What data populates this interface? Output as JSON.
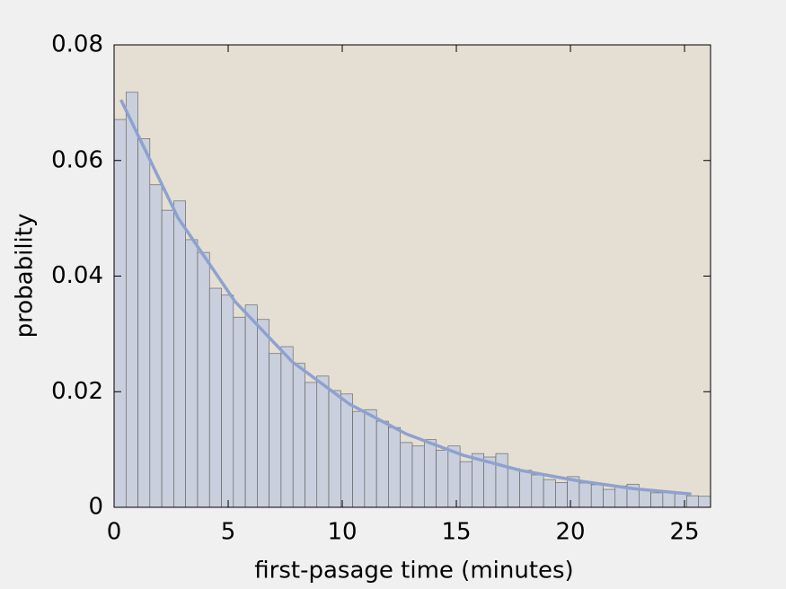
{
  "chart_data": {
    "type": "histogram",
    "x_label": "first-pasage time (minutes)",
    "y_label": "probability",
    "bins": [
      0,
      0.523,
      1.046,
      1.568,
      2.091,
      2.614,
      3.137,
      3.66,
      4.182,
      4.705,
      5.228,
      5.751,
      6.274,
      6.796,
      7.319,
      7.842,
      8.365,
      8.888,
      9.41,
      9.933,
      10.456,
      10.979,
      11.502,
      12.024,
      12.547,
      13.07,
      13.593,
      14.116,
      14.638,
      15.161,
      15.684,
      16.207,
      16.73,
      17.252,
      17.775,
      18.298,
      18.821,
      19.344,
      19.866,
      20.389,
      20.912,
      21.435,
      21.958,
      22.48,
      23.003,
      23.526,
      24.049,
      24.572,
      25.094,
      25.617,
      26.14
    ],
    "values": [
      0.0671,
      0.0718,
      0.0638,
      0.0558,
      0.0514,
      0.053,
      0.0463,
      0.0441,
      0.0379,
      0.0367,
      0.0329,
      0.035,
      0.0325,
      0.0266,
      0.0278,
      0.0249,
      0.0216,
      0.0227,
      0.0202,
      0.0196,
      0.0166,
      0.0169,
      0.0149,
      0.0138,
      0.0112,
      0.0106,
      0.0117,
      0.0099,
      0.0106,
      0.0079,
      0.0093,
      0.0087,
      0.0093,
      0.0067,
      0.0064,
      0.0056,
      0.0048,
      0.0043,
      0.0053,
      0.0042,
      0.0039,
      0.0031,
      0.0037,
      0.004,
      0.0031,
      0.0025,
      0.0026,
      0.0023,
      0.002,
      0.0019
    ],
    "color": "#c9cfdc",
    "edge_color": "#5a5a5a",
    "curve": {
      "x": [
        0.3,
        2.8,
        5.3,
        7.8,
        10.3,
        12.8,
        15.3,
        17.8,
        20.3,
        22.8,
        25.3
      ],
      "values": [
        0.0705,
        0.0501,
        0.0356,
        0.0252,
        0.0179,
        0.0127,
        0.009,
        0.0064,
        0.0046,
        0.0032,
        0.0023
      ],
      "color": "#8ea2cf"
    },
    "xlim": [
      0,
      26.14
    ],
    "ylim": [
      0,
      0.08
    ],
    "xticks": [
      0,
      5,
      10,
      15,
      20,
      25
    ],
    "yticks": [
      0,
      0.02,
      0.04,
      0.06,
      0.08
    ],
    "background": "#e5ded3"
  }
}
